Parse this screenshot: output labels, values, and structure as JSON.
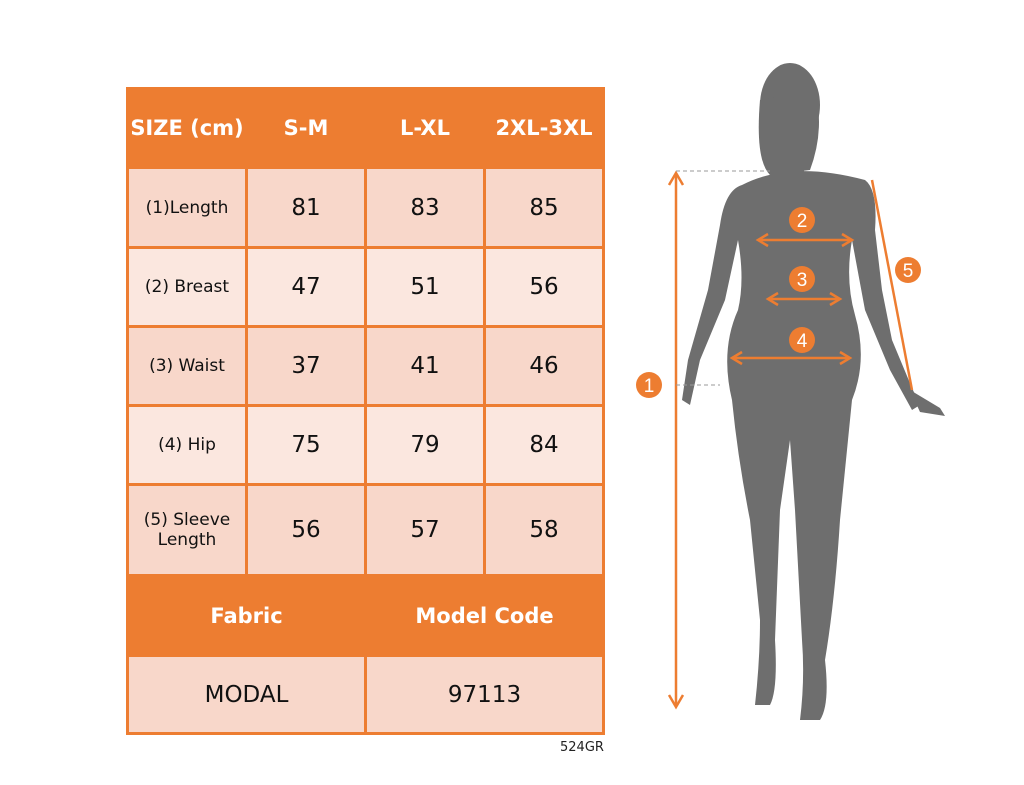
{
  "table": {
    "header": [
      "SIZE (cm)",
      "S-M",
      "L-XL",
      "2XL-3XL"
    ],
    "rows": [
      {
        "label": "(1)Length",
        "values": [
          "81",
          "83",
          "85"
        ]
      },
      {
        "label": "(2) Breast",
        "values": [
          "47",
          "51",
          "56"
        ]
      },
      {
        "label": "(3) Waist",
        "values": [
          "37",
          "41",
          "46"
        ]
      },
      {
        "label": "(4) Hip",
        "values": [
          "75",
          "79",
          "84"
        ]
      },
      {
        "label": "(5) Sleeve Length",
        "values": [
          "56",
          "57",
          "58"
        ]
      }
    ],
    "footer_header": [
      "Fabric",
      "Model Code"
    ],
    "footer_values": [
      "MODAL",
      "97113"
    ]
  },
  "code": "524GR",
  "figure": {
    "markers": [
      "1",
      "2",
      "3",
      "4",
      "5"
    ]
  },
  "colors": {
    "accent": "#ed7d31",
    "silhouette": "#6e6e6e"
  }
}
